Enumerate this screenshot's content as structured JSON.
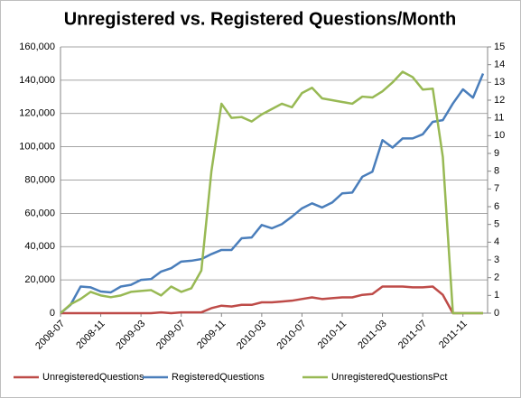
{
  "chart_data": {
    "type": "line",
    "title": "Unregistered vs. Registered Questions/Month",
    "categories": [
      "2008-07",
      null,
      null,
      null,
      "2008-11",
      null,
      null,
      null,
      "2009-03",
      null,
      null,
      null,
      "2009-07",
      null,
      null,
      null,
      "2009-11",
      null,
      null,
      null,
      "2010-03",
      null,
      null,
      null,
      "2010-07",
      null,
      null,
      null,
      "2010-11",
      null,
      null,
      null,
      "2011-03",
      null,
      null,
      null,
      "2011-07",
      null,
      null,
      null,
      "2011-11",
      null,
      null
    ],
    "series": [
      {
        "name": "UnregisteredQuestions",
        "color": "#be4b48",
        "axis": "y",
        "values": [
          0,
          0,
          0,
          0,
          0,
          0,
          0,
          0,
          0,
          0,
          500,
          0,
          500,
          500,
          500,
          3000,
          4500,
          4000,
          5000,
          5000,
          6500,
          6500,
          7000,
          7500,
          8500,
          9500,
          8500,
          9000,
          9500,
          9500,
          11000,
          11500,
          16000,
          16000,
          16000,
          15500,
          15500,
          16000,
          11000,
          0,
          0,
          0,
          0
        ]
      },
      {
        "name": "RegisteredQuestions",
        "color": "#4a7ebb",
        "axis": "y",
        "values": [
          0,
          5000,
          16000,
          15500,
          13000,
          12500,
          16000,
          17000,
          20000,
          20500,
          25000,
          27000,
          31000,
          31500,
          32500,
          35500,
          38000,
          38000,
          45000,
          45500,
          53000,
          51000,
          53500,
          58000,
          63000,
          66000,
          63500,
          66500,
          72000,
          72500,
          82000,
          85000,
          104000,
          99500,
          105000,
          105000,
          107500,
          115000,
          116000,
          126000,
          134500,
          129500,
          144000
        ]
      },
      {
        "name": "UnregisteredQuestionsPct",
        "color": "#98b954",
        "axis": "y2",
        "values": [
          0,
          0.5,
          0.8,
          1.2,
          1.0,
          0.9,
          1.0,
          1.2,
          1.25,
          1.3,
          1.0,
          1.5,
          1.2,
          1.4,
          2.4,
          8.0,
          11.8,
          11.0,
          11.05,
          10.8,
          11.2,
          11.5,
          11.8,
          11.6,
          12.4,
          12.7,
          12.1,
          12.0,
          11.9,
          11.8,
          12.2,
          12.15,
          12.5,
          13.0,
          13.6,
          13.3,
          12.6,
          12.65,
          8.8,
          0,
          0,
          0,
          0
        ]
      }
    ],
    "ylim": [
      0,
      160000
    ],
    "yticks": [
      0,
      {
        "value": 20000,
        "label": "20,000"
      },
      {
        "value": 40000,
        "label": "40,000"
      },
      {
        "value": 60000,
        "label": "60,000"
      },
      {
        "value": 80000,
        "label": "80,000"
      },
      {
        "value": 100000,
        "label": "100,000"
      },
      {
        "value": 120000,
        "label": "120,000"
      },
      {
        "value": 140000,
        "label": "140,000"
      },
      {
        "value": 160000,
        "label": "160,000"
      }
    ],
    "y2lim": [
      0,
      15
    ],
    "y2ticks": [
      0,
      1,
      2,
      3,
      4,
      5,
      6,
      7,
      8,
      9,
      10,
      11,
      12,
      13,
      14,
      15
    ],
    "grid": true,
    "legend": "bottom"
  }
}
